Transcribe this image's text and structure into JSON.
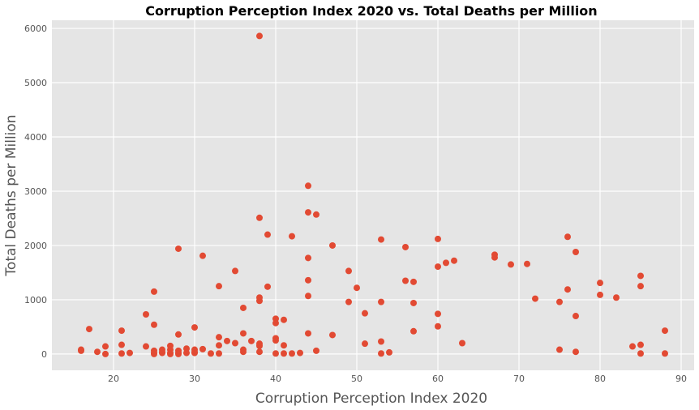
{
  "chart_data": {
    "type": "scatter",
    "title": "Corruption Perception Index 2020 vs. Total Deaths per Million",
    "xlabel": "Corruption Perception Index 2020",
    "ylabel": "Total Deaths per Million",
    "xlim": [
      12.4,
      91.6
    ],
    "ylim": [
      -300,
      6150
    ],
    "xticks": [
      20,
      30,
      40,
      50,
      60,
      70,
      80,
      90
    ],
    "yticks": [
      0,
      1000,
      2000,
      3000,
      4000,
      5000,
      6000
    ],
    "grid": true,
    "marker_color": "#E24A33",
    "background_color": "#E5E5E5",
    "points": [
      [
        16,
        80
      ],
      [
        16,
        60
      ],
      [
        17,
        460
      ],
      [
        18,
        40
      ],
      [
        19,
        140
      ],
      [
        19,
        0
      ],
      [
        21,
        430
      ],
      [
        21,
        170
      ],
      [
        21,
        10
      ],
      [
        22,
        20
      ],
      [
        24,
        730
      ],
      [
        24,
        140
      ],
      [
        25,
        1150
      ],
      [
        25,
        540
      ],
      [
        25,
        60
      ],
      [
        25,
        20
      ],
      [
        25,
        0
      ],
      [
        26,
        80
      ],
      [
        26,
        40
      ],
      [
        26,
        20
      ],
      [
        27,
        150
      ],
      [
        27,
        80
      ],
      [
        27,
        20
      ],
      [
        27,
        0
      ],
      [
        28,
        1940
      ],
      [
        28,
        360
      ],
      [
        28,
        60
      ],
      [
        28,
        20
      ],
      [
        28,
        0
      ],
      [
        29,
        100
      ],
      [
        29,
        20
      ],
      [
        30,
        490
      ],
      [
        30,
        80
      ],
      [
        30,
        40
      ],
      [
        30,
        20
      ],
      [
        31,
        1810
      ],
      [
        31,
        90
      ],
      [
        32,
        10
      ],
      [
        33,
        1250
      ],
      [
        33,
        310
      ],
      [
        33,
        160
      ],
      [
        33,
        10
      ],
      [
        34,
        240
      ],
      [
        35,
        1530
      ],
      [
        35,
        200
      ],
      [
        36,
        850
      ],
      [
        36,
        380
      ],
      [
        36,
        80
      ],
      [
        36,
        40
      ],
      [
        37,
        240
      ],
      [
        38,
        5860
      ],
      [
        38,
        2510
      ],
      [
        38,
        1040
      ],
      [
        38,
        980
      ],
      [
        38,
        190
      ],
      [
        38,
        150
      ],
      [
        38,
        40
      ],
      [
        39,
        2200
      ],
      [
        39,
        1240
      ],
      [
        40,
        650
      ],
      [
        40,
        570
      ],
      [
        40,
        290
      ],
      [
        40,
        250
      ],
      [
        40,
        10
      ],
      [
        41,
        630
      ],
      [
        41,
        160
      ],
      [
        41,
        10
      ],
      [
        42,
        2170
      ],
      [
        42,
        10
      ],
      [
        43,
        20
      ],
      [
        44,
        3100
      ],
      [
        44,
        2610
      ],
      [
        44,
        1770
      ],
      [
        44,
        1360
      ],
      [
        44,
        1070
      ],
      [
        44,
        380
      ],
      [
        45,
        2570
      ],
      [
        45,
        60
      ],
      [
        47,
        2000
      ],
      [
        47,
        350
      ],
      [
        49,
        1530
      ],
      [
        49,
        960
      ],
      [
        50,
        1220
      ],
      [
        51,
        750
      ],
      [
        51,
        190
      ],
      [
        53,
        2110
      ],
      [
        53,
        960
      ],
      [
        53,
        230
      ],
      [
        53,
        10
      ],
      [
        54,
        30
      ],
      [
        56,
        1970
      ],
      [
        56,
        1350
      ],
      [
        57,
        1330
      ],
      [
        57,
        940
      ],
      [
        57,
        420
      ],
      [
        60,
        2120
      ],
      [
        60,
        1610
      ],
      [
        60,
        740
      ],
      [
        60,
        510
      ],
      [
        61,
        1680
      ],
      [
        62,
        1720
      ],
      [
        63,
        200
      ],
      [
        67,
        1830
      ],
      [
        67,
        1780
      ],
      [
        69,
        1650
      ],
      [
        71,
        1660
      ],
      [
        72,
        1020
      ],
      [
        75,
        960
      ],
      [
        75,
        80
      ],
      [
        76,
        2160
      ],
      [
        76,
        1190
      ],
      [
        77,
        1880
      ],
      [
        77,
        700
      ],
      [
        77,
        40
      ],
      [
        80,
        1310
      ],
      [
        80,
        1090
      ],
      [
        82,
        1040
      ],
      [
        84,
        140
      ],
      [
        85,
        1440
      ],
      [
        85,
        1250
      ],
      [
        85,
        170
      ],
      [
        85,
        10
      ],
      [
        88,
        430
      ],
      [
        88,
        10
      ]
    ]
  }
}
